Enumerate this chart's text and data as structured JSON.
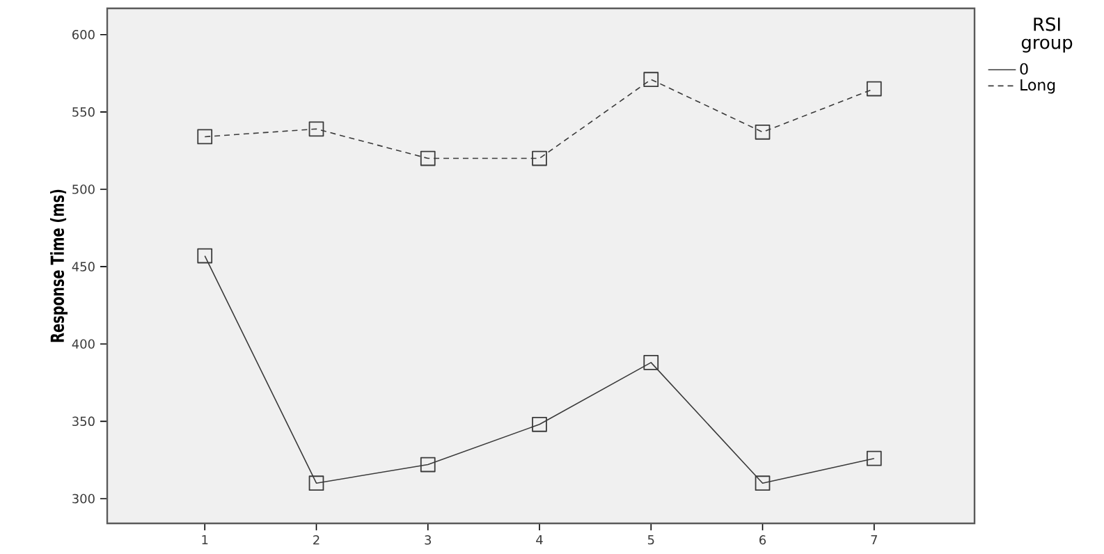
{
  "chart_data": {
    "type": "line",
    "ylabel": "Response Time (ms)",
    "legend_title": "RSI group",
    "categories": [
      "1",
      "2",
      "3",
      "4",
      "5",
      "6",
      "7"
    ],
    "series": [
      {
        "name": "0",
        "color": "#3a3a3a",
        "line_style": "solid",
        "values": [
          457,
          310,
          322,
          348,
          388,
          310,
          326
        ]
      },
      {
        "name": "Long",
        "color": "#3a3a3a",
        "line_style": "dashed",
        "values": [
          534,
          539,
          520,
          520,
          571,
          537,
          565
        ]
      }
    ],
    "ylim": [
      284,
      617
    ],
    "yticks": [
      300,
      350,
      400,
      450,
      500,
      550,
      600
    ],
    "marker": "square",
    "legend": "top right",
    "grid": false
  }
}
